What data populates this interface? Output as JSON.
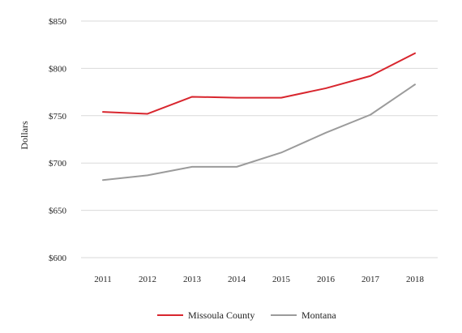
{
  "chart_data": {
    "type": "line",
    "title": "",
    "xlabel": "",
    "ylabel": "Dollars",
    "x": [
      "2011",
      "2012",
      "2013",
      "2014",
      "2015",
      "2016",
      "2017",
      "2018"
    ],
    "ylim": [
      600,
      850
    ],
    "yticks": [
      600,
      650,
      700,
      750,
      800,
      850
    ],
    "ytick_labels": [
      "$600",
      "$650",
      "$700",
      "$750",
      "$800",
      "$850"
    ],
    "grid": "horizontal",
    "legend_position": "bottom-center",
    "series": [
      {
        "name": "Missoula County",
        "color": "#d8262e",
        "values": [
          754,
          752,
          770,
          769,
          769,
          779,
          792,
          816
        ]
      },
      {
        "name": "Montana",
        "color": "#9b9b9b",
        "values": [
          682,
          687,
          696,
          696,
          711,
          732,
          751,
          783
        ]
      }
    ]
  }
}
